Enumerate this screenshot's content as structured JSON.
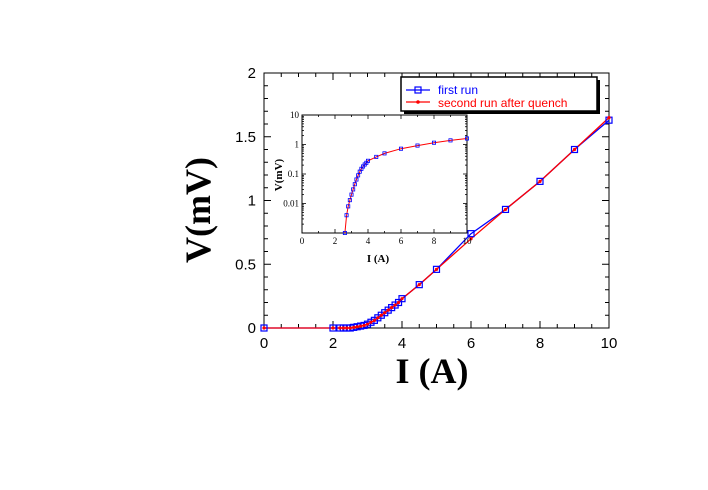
{
  "chart_data": {
    "main": {
      "type": "line",
      "title": "",
      "xlabel": "I (A)",
      "ylabel": "V(mV)",
      "xlim": [
        0,
        10
      ],
      "ylim": [
        0,
        2
      ],
      "x_ticks": [
        "0",
        "2",
        "4",
        "6",
        "8",
        "10"
      ],
      "y_ticks": [
        "0",
        "0.5",
        "1",
        "1.5",
        "2"
      ],
      "legend_position": "top-right",
      "grid": false,
      "series": [
        {
          "name": "first run",
          "color": "#0000ff",
          "marker": "open-square",
          "points": [
            [
              0,
              0
            ],
            [
              2,
              0
            ],
            [
              2.2,
              0
            ],
            [
              2.3,
              0
            ],
            [
              2.4,
              0
            ],
            [
              2.5,
              0
            ],
            [
              2.6,
              0.005
            ],
            [
              2.7,
              0.01
            ],
            [
              2.8,
              0.015
            ],
            [
              2.9,
              0.02
            ],
            [
              3.0,
              0.03
            ],
            [
              3.1,
              0.045
            ],
            [
              3.2,
              0.06
            ],
            [
              3.3,
              0.08
            ],
            [
              3.4,
              0.1
            ],
            [
              3.5,
              0.12
            ],
            [
              3.6,
              0.14
            ],
            [
              3.7,
              0.16
            ],
            [
              3.8,
              0.18
            ],
            [
              3.9,
              0.2
            ],
            [
              4.0,
              0.23
            ],
            [
              4.5,
              0.34
            ],
            [
              5,
              0.46
            ],
            [
              6,
              0.74
            ],
            [
              7,
              0.93
            ],
            [
              8,
              1.15
            ],
            [
              9,
              1.4
            ],
            [
              10,
              1.63
            ]
          ]
        },
        {
          "name": "second run after quench",
          "color": "#ff0000",
          "marker": "filled-circle",
          "points": [
            [
              0,
              0
            ],
            [
              2,
              0
            ],
            [
              2.2,
              0
            ],
            [
              2.3,
              0
            ],
            [
              2.4,
              0
            ],
            [
              2.5,
              0
            ],
            [
              2.6,
              0.005
            ],
            [
              2.7,
              0.01
            ],
            [
              2.8,
              0.015
            ],
            [
              2.9,
              0.02
            ],
            [
              3.0,
              0.03
            ],
            [
              3.1,
              0.045
            ],
            [
              3.2,
              0.06
            ],
            [
              3.3,
              0.08
            ],
            [
              3.4,
              0.1
            ],
            [
              3.5,
              0.12
            ],
            [
              3.6,
              0.14
            ],
            [
              3.7,
              0.16
            ],
            [
              3.8,
              0.18
            ],
            [
              3.9,
              0.2
            ],
            [
              4.0,
              0.23
            ],
            [
              4.5,
              0.34
            ],
            [
              5,
              0.46
            ],
            [
              6,
              0.7
            ],
            [
              7,
              0.93
            ],
            [
              8,
              1.15
            ],
            [
              9,
              1.4
            ],
            [
              10,
              1.65
            ]
          ]
        }
      ]
    },
    "inset": {
      "type": "line",
      "xlabel": "I (A)",
      "ylabel": "V(mV)",
      "xlim": [
        0,
        10
      ],
      "ylim": [
        0.001,
        10
      ],
      "y_scale": "log",
      "x_ticks": [
        "0",
        "2",
        "4",
        "6",
        "8",
        "10"
      ],
      "y_ticks": [
        "0.01",
        "0.1",
        "1",
        "10"
      ],
      "points": [
        [
          2.6,
          0.001
        ],
        [
          2.7,
          0.004
        ],
        [
          2.8,
          0.008
        ],
        [
          2.9,
          0.013
        ],
        [
          3.0,
          0.02
        ],
        [
          3.1,
          0.03
        ],
        [
          3.2,
          0.045
        ],
        [
          3.3,
          0.065
        ],
        [
          3.4,
          0.09
        ],
        [
          3.5,
          0.12
        ],
        [
          3.6,
          0.15
        ],
        [
          3.7,
          0.18
        ],
        [
          3.8,
          0.21
        ],
        [
          3.9,
          0.24
        ],
        [
          4.0,
          0.28
        ],
        [
          4.5,
          0.38
        ],
        [
          5,
          0.5
        ],
        [
          6,
          0.72
        ],
        [
          7,
          0.92
        ],
        [
          8,
          1.15
        ],
        [
          9,
          1.38
        ],
        [
          10,
          1.6
        ]
      ]
    }
  }
}
